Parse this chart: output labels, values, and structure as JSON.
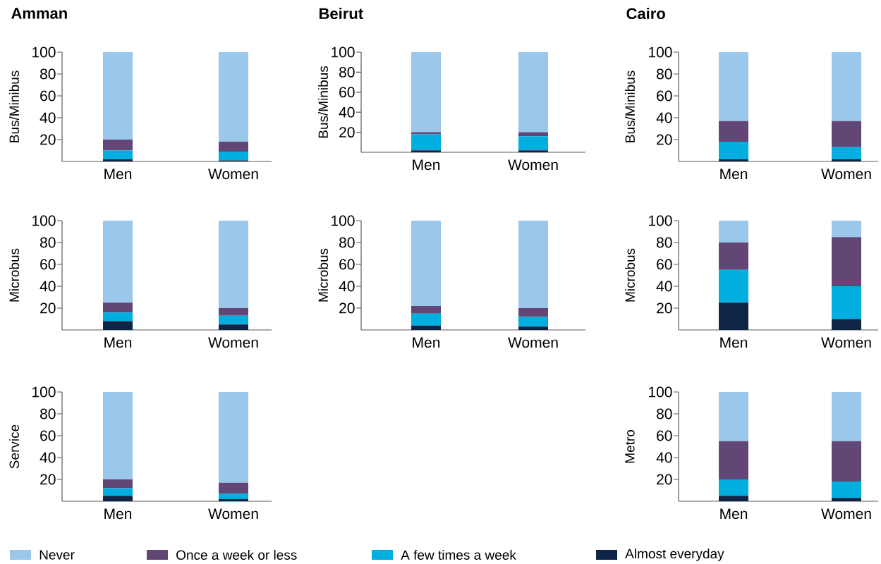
{
  "chart_data": [
    {
      "type": "bar",
      "stacked": true,
      "title": "Amman",
      "ylabel": "Bus/Minibus",
      "categories": [
        "Men",
        "Women"
      ],
      "ylim": [
        0,
        100
      ],
      "yticks": [
        20,
        40,
        60,
        80,
        100
      ],
      "legend": "bottom",
      "series": [
        {
          "name": "Almost everyday",
          "color": "#0f2547",
          "values": [
            2,
            1
          ]
        },
        {
          "name": "A few times a week",
          "color": "#00aee0",
          "values": [
            8,
            8
          ]
        },
        {
          "name": "Once a week or less",
          "color": "#614676",
          "values": [
            10,
            9
          ]
        },
        {
          "name": "Never",
          "color": "#9ac7ea",
          "values": [
            80,
            82
          ]
        }
      ]
    },
    {
      "type": "bar",
      "stacked": true,
      "title": "Beirut",
      "ylabel": "Bus/Minibus",
      "categories": [
        "Men",
        "Women"
      ],
      "ylim": [
        0,
        100
      ],
      "yticks": [
        20,
        40,
        60,
        80,
        100
      ],
      "series": [
        {
          "color": "#0f2547",
          "values": [
            2,
            2
          ]
        },
        {
          "color": "#00aee0",
          "values": [
            16,
            14
          ]
        },
        {
          "color": "#614676",
          "values": [
            2,
            4
          ]
        },
        {
          "color": "#9ac7ea",
          "values": [
            80,
            80
          ]
        }
      ]
    },
    {
      "type": "bar",
      "stacked": true,
      "title": "Cairo",
      "ylabel": "Bus/Minibus",
      "categories": [
        "Men",
        "Women"
      ],
      "ylim": [
        0,
        100
      ],
      "yticks": [
        20,
        40,
        60,
        80,
        100
      ],
      "series": [
        {
          "color": "#0f2547",
          "values": [
            2,
            2
          ]
        },
        {
          "color": "#00aee0",
          "values": [
            16,
            11
          ]
        },
        {
          "color": "#614676",
          "values": [
            19,
            24
          ]
        },
        {
          "color": "#9ac7ea",
          "values": [
            63,
            63
          ]
        }
      ]
    },
    {
      "type": "bar",
      "stacked": true,
      "ylabel": "Microbus",
      "categories": [
        "Men",
        "Women"
      ],
      "ylim": [
        0,
        100
      ],
      "yticks": [
        20,
        40,
        60,
        80,
        100
      ],
      "series": [
        {
          "color": "#0f2547",
          "values": [
            8,
            5
          ]
        },
        {
          "color": "#00aee0",
          "values": [
            8,
            8
          ]
        },
        {
          "color": "#614676",
          "values": [
            9,
            7
          ]
        },
        {
          "color": "#9ac7ea",
          "values": [
            75,
            80
          ]
        }
      ]
    },
    {
      "type": "bar",
      "stacked": true,
      "ylabel": "Microbus",
      "categories": [
        "Men",
        "Women"
      ],
      "ylim": [
        0,
        100
      ],
      "yticks": [
        20,
        40,
        60,
        80,
        100
      ],
      "series": [
        {
          "color": "#0f2547",
          "values": [
            4,
            3
          ]
        },
        {
          "color": "#00aee0",
          "values": [
            11,
            9
          ]
        },
        {
          "color": "#614676",
          "values": [
            7,
            8
          ]
        },
        {
          "color": "#9ac7ea",
          "values": [
            78,
            80
          ]
        }
      ]
    },
    {
      "type": "bar",
      "stacked": true,
      "ylabel": "Microbus",
      "categories": [
        "Men",
        "Women"
      ],
      "ylim": [
        0,
        100
      ],
      "yticks": [
        20,
        40,
        60,
        80,
        100
      ],
      "series": [
        {
          "color": "#0f2547",
          "values": [
            25,
            10
          ]
        },
        {
          "color": "#00aee0",
          "values": [
            30,
            30
          ]
        },
        {
          "color": "#614676",
          "values": [
            25,
            45
          ]
        },
        {
          "color": "#9ac7ea",
          "values": [
            20,
            15
          ]
        }
      ]
    },
    {
      "type": "bar",
      "stacked": true,
      "ylabel": "Service",
      "categories": [
        "Men",
        "Women"
      ],
      "ylim": [
        0,
        100
      ],
      "yticks": [
        20,
        40,
        60,
        80,
        100
      ],
      "series": [
        {
          "color": "#0f2547",
          "values": [
            5,
            2
          ]
        },
        {
          "color": "#00aee0",
          "values": [
            7,
            5
          ]
        },
        {
          "color": "#614676",
          "values": [
            8,
            10
          ]
        },
        {
          "color": "#9ac7ea",
          "values": [
            80,
            83
          ]
        }
      ]
    },
    {
      "type": "bar",
      "stacked": true,
      "ylabel": "Metro",
      "categories": [
        "Men",
        "Women"
      ],
      "ylim": [
        0,
        100
      ],
      "yticks": [
        20,
        40,
        60,
        80,
        100
      ],
      "series": [
        {
          "color": "#0f2547",
          "values": [
            5,
            3
          ]
        },
        {
          "color": "#00aee0",
          "values": [
            15,
            15
          ]
        },
        {
          "color": "#614676",
          "values": [
            35,
            37
          ]
        },
        {
          "color": "#9ac7ea",
          "values": [
            45,
            45
          ]
        }
      ]
    }
  ]
}
